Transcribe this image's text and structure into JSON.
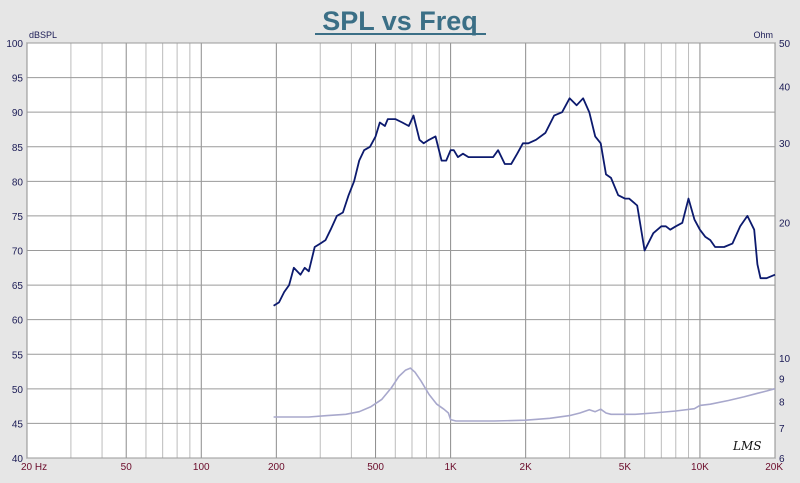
{
  "chart_data": {
    "type": "line",
    "title": "SPL vs Freq",
    "left_axis_unit": "dBSPL",
    "right_axis_unit": "Ohm",
    "x_scale": "log",
    "xlim": [
      20,
      20000
    ],
    "ylim_left": [
      40,
      100
    ],
    "ylim_right": [
      6,
      50
    ],
    "y_right_scale": "log",
    "grid": true,
    "x_tick_labels": [
      {
        "value": 20,
        "label": "20 Hz"
      },
      {
        "value": 50,
        "label": "50"
      },
      {
        "value": 100,
        "label": "100"
      },
      {
        "value": 200,
        "label": "200"
      },
      {
        "value": 500,
        "label": "500"
      },
      {
        "value": 1000,
        "label": "1K"
      },
      {
        "value": 2000,
        "label": "2K"
      },
      {
        "value": 5000,
        "label": "5K"
      },
      {
        "value": 10000,
        "label": "10K"
      },
      {
        "value": 20000,
        "label": "20K"
      }
    ],
    "y_left_ticks": [
      100,
      95,
      90,
      85,
      80,
      75,
      70,
      65,
      60,
      55,
      50,
      45,
      40
    ],
    "y_right_ticks": [
      50,
      40,
      30,
      20,
      10,
      9,
      8,
      7,
      6
    ],
    "series": [
      {
        "axis": "left",
        "color": "#0c1a6e",
        "x": [
          195,
          205,
          215,
          225,
          235,
          250,
          260,
          270,
          285,
          300,
          315,
          330,
          350,
          370,
          390,
          410,
          430,
          450,
          475,
          500,
          520,
          545,
          560,
          600,
          640,
          680,
          710,
          750,
          780,
          820,
          870,
          920,
          960,
          1000,
          1030,
          1070,
          1120,
          1180,
          1250,
          1320,
          1400,
          1480,
          1550,
          1650,
          1750,
          1850,
          1950,
          2050,
          2200,
          2400,
          2600,
          2800,
          3000,
          3200,
          3400,
          3600,
          3800,
          4000,
          4200,
          4400,
          4700,
          5000,
          5200,
          5600,
          6000,
          6500,
          7000,
          7300,
          7600,
          8000,
          8500,
          9000,
          9500,
          10000,
          10500,
          11000,
          11500,
          12500,
          13500,
          14500,
          15500,
          16500,
          17000,
          17500,
          18500,
          20000
        ],
        "y": [
          62,
          62.5,
          64,
          65,
          67.5,
          66.5,
          67.5,
          67,
          70.5,
          71,
          71.5,
          73,
          75,
          75.5,
          78,
          80,
          83,
          84.5,
          85,
          86.5,
          88.5,
          88,
          89,
          89,
          88.5,
          88,
          89.5,
          86,
          85.5,
          86,
          86.5,
          83,
          83,
          84.5,
          84.5,
          83.5,
          84,
          83.5,
          83.5,
          83.5,
          83.5,
          83.5,
          84.5,
          82.5,
          82.5,
          84,
          85.5,
          85.5,
          86,
          87,
          89.5,
          90,
          92,
          91,
          92,
          90,
          86.5,
          85.5,
          81,
          80.5,
          78,
          77.5,
          77.5,
          76.5,
          70,
          72.5,
          73.5,
          73.5,
          73,
          73.5,
          74,
          77.5,
          74.5,
          73,
          72,
          71.5,
          70.5,
          70.5,
          71,
          73.5,
          75,
          73,
          68,
          66,
          66,
          66.5
        ]
      },
      {
        "axis": "right",
        "color": "#a8a8cc",
        "x": [
          195,
          230,
          270,
          320,
          380,
          430,
          480,
          530,
          580,
          620,
          660,
          690,
          720,
          760,
          820,
          880,
          940,
          980,
          1000,
          1050,
          1200,
          1500,
          2000,
          2500,
          3000,
          3300,
          3600,
          3800,
          4000,
          4200,
          4400,
          4800,
          5500,
          6500,
          8000,
          9500,
          10000,
          11000,
          13000,
          15000,
          17000,
          18500,
          20000
        ],
        "y": [
          7.4,
          7.4,
          7.4,
          7.45,
          7.5,
          7.6,
          7.8,
          8.1,
          8.6,
          9.1,
          9.4,
          9.5,
          9.3,
          8.9,
          8.3,
          7.9,
          7.7,
          7.55,
          7.3,
          7.25,
          7.25,
          7.25,
          7.28,
          7.35,
          7.45,
          7.55,
          7.68,
          7.6,
          7.7,
          7.55,
          7.5,
          7.5,
          7.5,
          7.55,
          7.63,
          7.72,
          7.85,
          7.9,
          8.05,
          8.2,
          8.35,
          8.45,
          8.55
        ]
      }
    ],
    "signature": "LMS"
  }
}
